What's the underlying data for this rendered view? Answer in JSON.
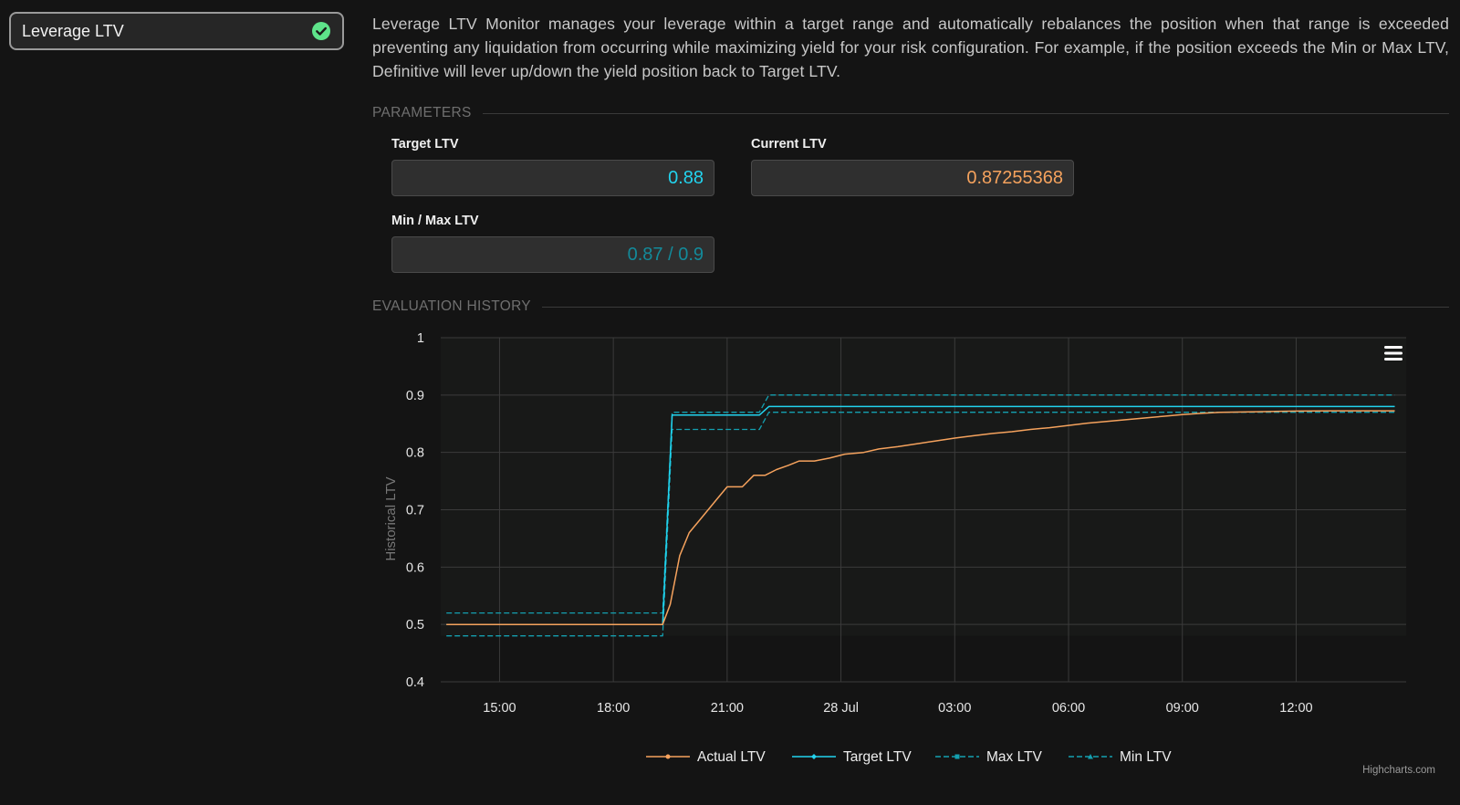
{
  "strategy": {
    "label": "Leverage LTV",
    "status_icon": "check-circle-icon",
    "status_color": "#5ee38a"
  },
  "description": "Leverage LTV Monitor manages your leverage within a target range and automatically rebalances the position when that range is exceeded preventing any liquidation from occurring while maximizing yield for your risk configuration. For example, if the position exceeds the Min or Max LTV, Definitive will lever up/down the yield position back to Target LTV.",
  "parameters": {
    "section_title": "PARAMETERS",
    "target_ltv": {
      "label": "Target LTV",
      "value": "0.88"
    },
    "current_ltv": {
      "label": "Current LTV",
      "value": "0.87255368"
    },
    "min_max_ltv": {
      "label": "Min / Max LTV",
      "value": "0.87 / 0.9"
    }
  },
  "history": {
    "section_title": "EVALUATION HISTORY",
    "menu_icon": "hamburger-menu-icon"
  },
  "chart_data": {
    "type": "line",
    "ylabel": "Historical LTV",
    "ylim": [
      0.4,
      1
    ],
    "yticks": [
      0.4,
      0.5,
      0.6,
      0.7,
      0.8,
      0.9,
      1
    ],
    "ytick_labels": [
      "0.4",
      "0.5",
      "0.6",
      "0.7",
      "0.8",
      "0.9",
      "1"
    ],
    "xlim": [
      13.45,
      38.9
    ],
    "xticks": [
      15,
      18,
      21,
      24,
      27,
      30,
      33,
      36
    ],
    "xtick_labels": [
      "15:00",
      "18:00",
      "21:00",
      "28 Jul",
      "03:00",
      "06:00",
      "09:00",
      "12:00"
    ],
    "grid": true,
    "legend_position": "bottom-center",
    "credits": "Highcharts.com",
    "series": [
      {
        "name": "Actual LTV",
        "color": "#f5a25d",
        "dash": "solid",
        "marker": "circle",
        "x": [
          13.6,
          19.3,
          19.5,
          19.75,
          20.0,
          20.25,
          20.5,
          20.75,
          21.0,
          21.4,
          21.7,
          22.0,
          22.3,
          22.6,
          22.9,
          23.3,
          23.7,
          24.1,
          24.6,
          25.0,
          25.5,
          26.0,
          26.5,
          27.0,
          27.5,
          28.0,
          28.5,
          29.0,
          29.5,
          30.0,
          30.5,
          31.0,
          31.5,
          32.0,
          32.5,
          33.0,
          33.5,
          34.0,
          35.0,
          36.0,
          37.0,
          38.6
        ],
        "y": [
          0.5,
          0.5,
          0.535,
          0.62,
          0.66,
          0.68,
          0.7,
          0.72,
          0.74,
          0.74,
          0.76,
          0.76,
          0.77,
          0.777,
          0.785,
          0.785,
          0.79,
          0.797,
          0.8,
          0.806,
          0.81,
          0.815,
          0.82,
          0.825,
          0.829,
          0.833,
          0.836,
          0.84,
          0.843,
          0.847,
          0.851,
          0.854,
          0.857,
          0.86,
          0.863,
          0.866,
          0.868,
          0.87,
          0.871,
          0.872,
          0.8725,
          0.8725
        ]
      },
      {
        "name": "Target LTV",
        "color": "#22d3ee",
        "dash": "solid",
        "marker": "diamond",
        "x": [
          13.6,
          19.3,
          19.55,
          21.85,
          22.1,
          38.6
        ],
        "y": [
          0.5,
          0.5,
          0.865,
          0.865,
          0.88,
          0.88
        ]
      },
      {
        "name": "Max LTV",
        "color": "#14a0b0",
        "dash": "dashed",
        "marker": "square",
        "x": [
          13.6,
          19.3,
          19.55,
          21.85,
          22.1,
          38.6
        ],
        "y": [
          0.52,
          0.52,
          0.87,
          0.87,
          0.9,
          0.9
        ]
      },
      {
        "name": "Min LTV",
        "color": "#14a0b0",
        "dash": "dashed",
        "marker": "triangle",
        "x": [
          13.6,
          19.3,
          19.55,
          21.85,
          22.1,
          38.6
        ],
        "y": [
          0.48,
          0.48,
          0.84,
          0.84,
          0.87,
          0.87
        ]
      }
    ]
  }
}
